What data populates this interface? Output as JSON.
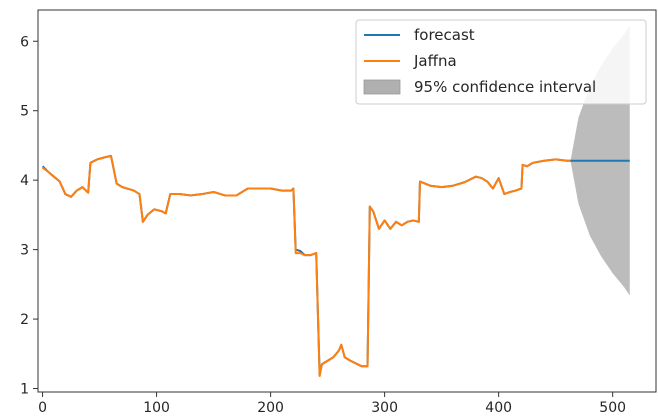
{
  "chart_data": {
    "type": "line",
    "title": "",
    "xlabel": "",
    "ylabel": "",
    "xlim": [
      -4,
      538
    ],
    "ylim": [
      0.95,
      6.45
    ],
    "xticks": [
      0,
      100,
      200,
      300,
      400,
      500
    ],
    "yticks": [
      1,
      2,
      3,
      4,
      5,
      6
    ],
    "legend": {
      "position": "top-right",
      "entries": [
        "forecast",
        "Jaffna",
        "95% confidence interval"
      ]
    },
    "series": [
      {
        "name": "forecast",
        "color": "#1f77b4",
        "x": [
          0,
          5,
          10,
          15,
          20,
          25,
          30,
          35,
          40,
          42,
          48,
          55,
          60,
          65,
          70,
          80,
          85,
          88,
          92,
          98,
          105,
          108,
          112,
          120,
          130,
          140,
          150,
          160,
          170,
          180,
          190,
          200,
          210,
          218,
          220,
          222,
          226,
          230,
          235,
          240,
          243,
          245,
          250,
          255,
          260,
          262,
          265,
          270,
          280,
          285,
          287,
          290,
          295,
          300,
          305,
          310,
          315,
          320,
          325,
          330,
          331,
          340,
          350,
          360,
          370,
          380,
          385,
          390,
          395,
          400,
          405,
          410,
          415,
          420,
          421,
          425,
          430,
          440,
          450,
          460,
          463,
          480,
          500,
          515
        ],
        "y": [
          4.2,
          4.12,
          4.05,
          3.98,
          3.8,
          3.76,
          3.85,
          3.9,
          3.82,
          4.25,
          4.3,
          4.33,
          4.35,
          3.95,
          3.9,
          3.85,
          3.8,
          3.4,
          3.5,
          3.58,
          3.55,
          3.52,
          3.8,
          3.8,
          3.78,
          3.8,
          3.83,
          3.78,
          3.78,
          3.88,
          3.88,
          3.88,
          3.85,
          3.85,
          3.88,
          3.0,
          2.98,
          2.92,
          2.92,
          2.95,
          1.2,
          1.35,
          1.4,
          1.45,
          1.55,
          1.63,
          1.45,
          1.4,
          1.32,
          1.32,
          3.62,
          3.55,
          3.3,
          3.42,
          3.3,
          3.4,
          3.35,
          3.4,
          3.42,
          3.4,
          3.98,
          3.92,
          3.9,
          3.92,
          3.97,
          4.05,
          4.03,
          3.98,
          3.88,
          4.03,
          3.8,
          3.83,
          3.85,
          3.88,
          4.22,
          4.2,
          4.25,
          4.28,
          4.3,
          4.28,
          4.28,
          4.28,
          4.28,
          4.28
        ]
      },
      {
        "name": "Jaffna",
        "color": "#ff7f0e",
        "x": [
          0,
          5,
          10,
          15,
          20,
          25,
          30,
          35,
          40,
          42,
          48,
          55,
          60,
          65,
          70,
          80,
          85,
          88,
          92,
          98,
          105,
          108,
          112,
          120,
          130,
          140,
          150,
          160,
          170,
          180,
          190,
          200,
          210,
          218,
          220,
          222,
          226,
          230,
          235,
          240,
          243,
          245,
          250,
          255,
          260,
          262,
          265,
          270,
          280,
          285,
          287,
          290,
          295,
          300,
          305,
          310,
          315,
          320,
          325,
          330,
          331,
          340,
          350,
          360,
          370,
          380,
          385,
          390,
          395,
          400,
          405,
          410,
          415,
          420,
          421,
          425,
          430,
          440,
          450,
          460,
          463
        ],
        "y": [
          4.18,
          4.12,
          4.05,
          3.98,
          3.8,
          3.76,
          3.85,
          3.9,
          3.82,
          4.25,
          4.3,
          4.33,
          4.35,
          3.95,
          3.9,
          3.85,
          3.8,
          3.4,
          3.5,
          3.58,
          3.55,
          3.52,
          3.8,
          3.8,
          3.78,
          3.8,
          3.83,
          3.78,
          3.78,
          3.88,
          3.88,
          3.88,
          3.85,
          3.85,
          3.88,
          2.95,
          2.95,
          2.92,
          2.92,
          2.95,
          1.18,
          1.35,
          1.4,
          1.45,
          1.55,
          1.63,
          1.45,
          1.4,
          1.32,
          1.32,
          3.62,
          3.55,
          3.3,
          3.42,
          3.3,
          3.4,
          3.35,
          3.4,
          3.42,
          3.4,
          3.98,
          3.92,
          3.9,
          3.92,
          3.97,
          4.05,
          4.03,
          3.98,
          3.88,
          4.03,
          3.8,
          3.83,
          3.85,
          3.88,
          4.22,
          4.2,
          4.25,
          4.28,
          4.3,
          4.28,
          4.28
        ]
      }
    ],
    "confidence_interval": {
      "name": "95% confidence interval",
      "color": "#b0b0b0",
      "x": [
        463,
        470,
        480,
        490,
        500,
        510,
        515
      ],
      "upper": [
        4.28,
        4.9,
        5.35,
        5.65,
        5.9,
        6.1,
        6.22
      ],
      "lower": [
        4.28,
        3.66,
        3.2,
        2.9,
        2.66,
        2.46,
        2.34
      ]
    },
    "grid": false
  }
}
